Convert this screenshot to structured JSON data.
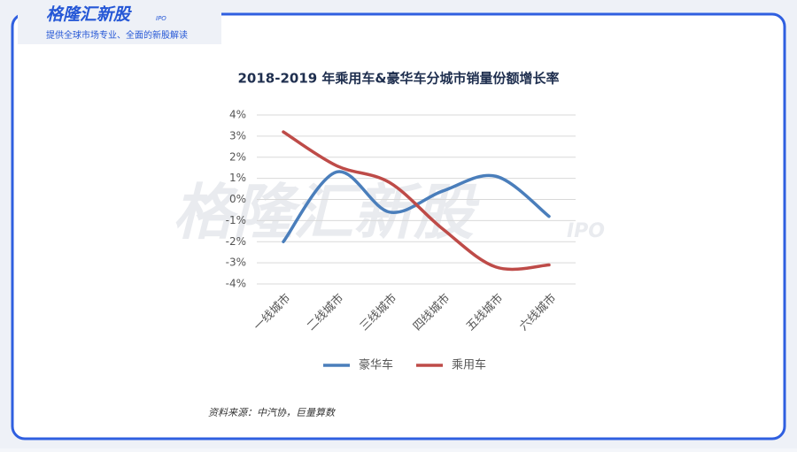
{
  "header": {
    "logo": "格隆汇新股",
    "logo_tag": "IPO",
    "tagline": "提供全球市场专业、全面的新股解读"
  },
  "watermark": {
    "text": "格隆汇新股",
    "tag": "IPO"
  },
  "chart_data": {
    "type": "line",
    "title": "2018-2019 年乘用车&豪华车分城市销量份额增长率",
    "categories": [
      "一线城市",
      "二线城市",
      "三线城市",
      "四线城市",
      "五线城市",
      "六线城市"
    ],
    "series": [
      {
        "name": "豪华车",
        "color": "#4a7ebb",
        "values": [
          -2,
          1.3,
          -0.6,
          0.4,
          1.1,
          -0.8
        ]
      },
      {
        "name": "乘用车",
        "color": "#be4b48",
        "values": [
          3.2,
          1.6,
          0.8,
          -1.4,
          -3.2,
          -3.1
        ]
      }
    ],
    "ylim": [
      -4,
      4
    ],
    "yticks": [
      {
        "value": -4,
        "label": "-4%"
      },
      {
        "value": -3,
        "label": "-3%"
      },
      {
        "value": -2,
        "label": "-2%"
      },
      {
        "value": -1,
        "label": "-1%"
      },
      {
        "value": 0,
        "label": "0%"
      },
      {
        "value": 1,
        "label": "1%"
      },
      {
        "value": 2,
        "label": "2%"
      },
      {
        "value": 3,
        "label": "3%"
      },
      {
        "value": 4,
        "label": "4%"
      }
    ],
    "grid": true,
    "legend": "bottom",
    "smooth": true,
    "source": "资料来源：中汽协，巨量算数"
  }
}
